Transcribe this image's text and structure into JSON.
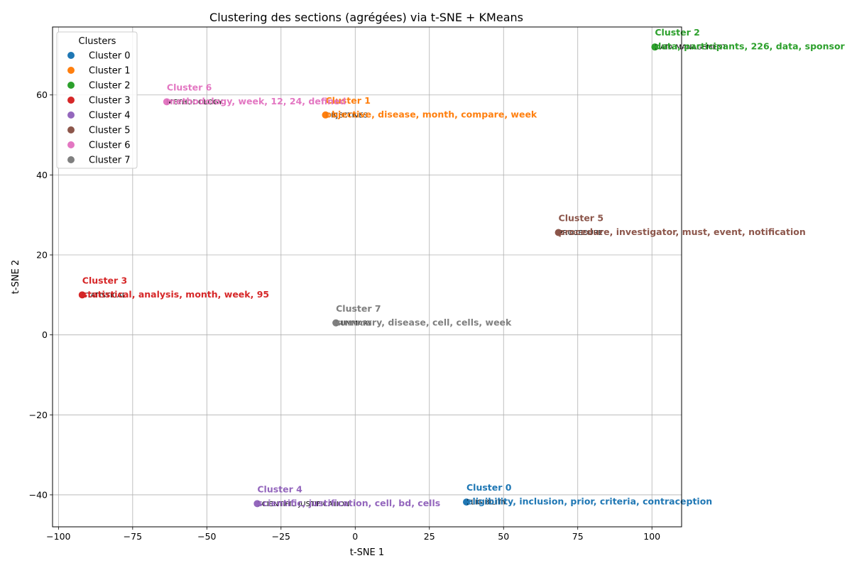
{
  "chart_data": {
    "type": "scatter",
    "title": "Clustering des sections (agrégées) via t-SNE + KMeans",
    "xlabel": "t-SNE 1",
    "ylabel": "t-SNE 2",
    "xlim": [
      -102,
      110
    ],
    "ylim": [
      -48,
      77
    ],
    "xticks": [
      -100,
      -75,
      -50,
      -25,
      0,
      25,
      50,
      75,
      100
    ],
    "yticks": [
      -40,
      -20,
      0,
      20,
      40,
      60
    ],
    "xtick_labels": [
      "−100",
      "−75",
      "−50",
      "−25",
      "0",
      "25",
      "50",
      "75",
      "100"
    ],
    "ytick_labels": [
      "−40",
      "−20",
      "0",
      "20",
      "40",
      "60"
    ],
    "grid": true,
    "legend": {
      "title": "Clusters",
      "placement": "top-left"
    },
    "series": [
      {
        "name": "Cluster 0",
        "color": "#1f77b4",
        "x": 37.5,
        "y": -41.8,
        "section": "ELIGIBILITY",
        "keywords": "Cluster 0",
        "keywords_line": "eligibility, inclusion, prior, criteria, contraception"
      },
      {
        "name": "Cluster 1",
        "color": "#ff7f0e",
        "x": -10,
        "y": 55,
        "section": "OBJECTIVES",
        "keywords": "Cluster 1",
        "keywords_line": "objective, disease, month, compare, week"
      },
      {
        "name": "Cluster 2",
        "color": "#2ca02c",
        "x": 101,
        "y": 72,
        "section": "DATA MANAGEMENT",
        "keywords": "Cluster 2",
        "keywords_line": "data, participants, 226, data, sponsor"
      },
      {
        "name": "Cluster 3",
        "color": "#d62728",
        "x": -92,
        "y": 10,
        "section": "STATISTICAL",
        "keywords": "Cluster 3",
        "keywords_line": "statistical, analysis, month, week, 95"
      },
      {
        "name": "Cluster 4",
        "color": "#9467bd",
        "x": -33,
        "y": -42.2,
        "section": "SCIENTIFIC JUSTIFICATION",
        "keywords": "Cluster 4",
        "keywords_line": "scientific, justification, cell, bd, cells"
      },
      {
        "name": "Cluster 5",
        "color": "#8c564b",
        "x": 68.5,
        "y": 25.6,
        "section": "PROCEDURE",
        "keywords": "Cluster 5",
        "keywords_line": "procedure, investigator, must, event, notification"
      },
      {
        "name": "Cluster 6",
        "color": "#e377c2",
        "x": -63.5,
        "y": 58.3,
        "section": "METHODOLOGY",
        "keywords": "Cluster 6",
        "keywords_line": "methodology, week, 12, 24, defined"
      },
      {
        "name": "Cluster 7",
        "color": "#7f7f7f",
        "x": -6.5,
        "y": 3,
        "section": "SUMMARY",
        "keywords": "Cluster 7",
        "keywords_line": "summary, disease, cell, cells, week"
      }
    ]
  }
}
